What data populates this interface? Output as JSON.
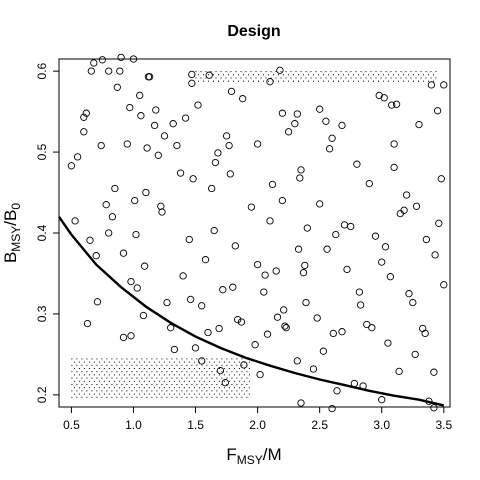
{
  "chart_data": {
    "type": "scatter",
    "title": "Design",
    "xlabel": {
      "main": "F",
      "sub": "MSY",
      "rest": "/M"
    },
    "ylabel": {
      "main": "B",
      "sub": "MSY",
      "mid": "/B",
      "sub2": "0"
    },
    "xlim": [
      0.4,
      3.55
    ],
    "ylim": [
      0.185,
      0.615
    ],
    "xticks": [
      "0.5",
      "1.0",
      "1.5",
      "2.0",
      "2.5",
      "3.0",
      "3.5"
    ],
    "xtick_values": [
      0.5,
      1.0,
      1.5,
      2.0,
      2.5,
      3.0,
      3.5
    ],
    "yticks": [
      "0.2",
      "0.3",
      "0.4",
      "0.5",
      "0.6"
    ],
    "ytick_values": [
      0.2,
      0.3,
      0.4,
      0.5,
      0.6
    ],
    "grid": false,
    "curve": {
      "x": [
        0.4,
        0.5,
        0.7,
        0.9,
        1.1,
        1.3,
        1.5,
        1.7,
        1.9,
        2.1,
        2.3,
        2.5,
        2.7,
        2.9,
        3.1,
        3.3,
        3.5
      ],
      "y": [
        0.42,
        0.398,
        0.361,
        0.333,
        0.309,
        0.289,
        0.272,
        0.258,
        0.246,
        0.236,
        0.227,
        0.219,
        0.212,
        0.205,
        0.199,
        0.194,
        0.187
      ]
    },
    "stipple_regions": [
      {
        "x": [
          1.5,
          3.45
        ],
        "y": [
          0.585,
          0.6
        ]
      },
      {
        "x": [
          0.5,
          1.95
        ],
        "y": [
          0.195,
          0.245
        ]
      }
    ],
    "points": [
      [
        0.5,
        0.483
      ],
      [
        0.55,
        0.494
      ],
      [
        0.53,
        0.415
      ],
      [
        0.6,
        0.525
      ],
      [
        0.6,
        0.543
      ],
      [
        0.62,
        0.548
      ],
      [
        0.63,
        0.288
      ],
      [
        0.65,
        0.391
      ],
      [
        0.66,
        0.6
      ],
      [
        0.68,
        0.61
      ],
      [
        0.7,
        0.372
      ],
      [
        0.71,
        0.315
      ],
      [
        0.75,
        0.614
      ],
      [
        0.74,
        0.508
      ],
      [
        0.78,
        0.435
      ],
      [
        0.8,
        0.6
      ],
      [
        0.8,
        0.4
      ],
      [
        0.83,
        0.42
      ],
      [
        0.85,
        0.455
      ],
      [
        0.87,
        0.58
      ],
      [
        0.89,
        0.6
      ],
      [
        0.9,
        0.617
      ],
      [
        0.92,
        0.375
      ],
      [
        0.92,
        0.271
      ],
      [
        0.95,
        0.51
      ],
      [
        0.97,
        0.555
      ],
      [
        0.98,
        0.34
      ],
      [
        0.98,
        0.273
      ],
      [
        1.0,
        0.615
      ],
      [
        1.01,
        0.44
      ],
      [
        1.02,
        0.398
      ],
      [
        1.03,
        0.332
      ],
      [
        1.05,
        0.57
      ],
      [
        1.06,
        0.545
      ],
      [
        1.08,
        0.298
      ],
      [
        1.09,
        0.359
      ],
      [
        1.1,
        0.45
      ],
      [
        1.11,
        0.505
      ],
      [
        1.12,
        0.593
      ],
      [
        1.13,
        0.593
      ],
      [
        1.17,
        0.533
      ],
      [
        1.18,
        0.552
      ],
      [
        1.2,
        0.496
      ],
      [
        1.22,
        0.433
      ],
      [
        1.23,
        0.426
      ],
      [
        1.25,
        0.52
      ],
      [
        1.27,
        0.314
      ],
      [
        1.3,
        0.283
      ],
      [
        1.32,
        0.535
      ],
      [
        1.33,
        0.256
      ],
      [
        1.35,
        0.508
      ],
      [
        1.38,
        0.474
      ],
      [
        1.4,
        0.347
      ],
      [
        1.42,
        0.542
      ],
      [
        1.45,
        0.392
      ],
      [
        1.46,
        0.318
      ],
      [
        1.47,
        0.596
      ],
      [
        1.47,
        0.585
      ],
      [
        1.48,
        0.467
      ],
      [
        1.5,
        0.258
      ],
      [
        1.52,
        0.558
      ],
      [
        1.55,
        0.242
      ],
      [
        1.55,
        0.31
      ],
      [
        1.58,
        0.367
      ],
      [
        1.6,
        0.277
      ],
      [
        1.61,
        0.595
      ],
      [
        1.63,
        0.455
      ],
      [
        1.65,
        0.403
      ],
      [
        1.66,
        0.487
      ],
      [
        1.68,
        0.499
      ],
      [
        1.69,
        0.282
      ],
      [
        1.7,
        0.23
      ],
      [
        1.72,
        0.33
      ],
      [
        1.74,
        0.215
      ],
      [
        1.75,
        0.52
      ],
      [
        1.77,
        0.508
      ],
      [
        1.78,
        0.473
      ],
      [
        1.79,
        0.575
      ],
      [
        1.8,
        0.333
      ],
      [
        1.82,
        0.384
      ],
      [
        1.84,
        0.293
      ],
      [
        1.87,
        0.29
      ],
      [
        1.88,
        0.566
      ],
      [
        1.89,
        0.237
      ],
      [
        1.95,
        0.432
      ],
      [
        1.98,
        0.262
      ],
      [
        2.0,
        0.51
      ],
      [
        2.0,
        0.361
      ],
      [
        2.02,
        0.225
      ],
      [
        2.05,
        0.327
      ],
      [
        2.06,
        0.348
      ],
      [
        2.08,
        0.275
      ],
      [
        2.1,
        0.587
      ],
      [
        2.1,
        0.415
      ],
      [
        2.12,
        0.46
      ],
      [
        2.15,
        0.353
      ],
      [
        2.16,
        0.296
      ],
      [
        2.18,
        0.601
      ],
      [
        2.2,
        0.548
      ],
      [
        2.2,
        0.44
      ],
      [
        2.21,
        0.305
      ],
      [
        2.22,
        0.285
      ],
      [
        2.23,
        0.283
      ],
      [
        2.25,
        0.525
      ],
      [
        2.3,
        0.535
      ],
      [
        2.32,
        0.242
      ],
      [
        2.32,
        0.547
      ],
      [
        2.33,
        0.38
      ],
      [
        2.34,
        0.468
      ],
      [
        2.35,
        0.478
      ],
      [
        2.35,
        0.19
      ],
      [
        2.37,
        0.351
      ],
      [
        2.38,
        0.36
      ],
      [
        2.39,
        0.314
      ],
      [
        2.4,
        0.406
      ],
      [
        2.45,
        0.232
      ],
      [
        2.48,
        0.295
      ],
      [
        2.5,
        0.553
      ],
      [
        2.5,
        0.436
      ],
      [
        2.53,
        0.254
      ],
      [
        2.55,
        0.538
      ],
      [
        2.56,
        0.38
      ],
      [
        2.58,
        0.504
      ],
      [
        2.6,
        0.517
      ],
      [
        2.61,
        0.276
      ],
      [
        2.63,
        0.398
      ],
      [
        2.64,
        0.205
      ],
      [
        2.68,
        0.278
      ],
      [
        2.68,
        0.533
      ],
      [
        2.7,
        0.41
      ],
      [
        2.72,
        0.355
      ],
      [
        2.75,
        0.408
      ],
      [
        2.78,
        0.214
      ],
      [
        2.8,
        0.485
      ],
      [
        2.82,
        0.327
      ],
      [
        2.83,
        0.311
      ],
      [
        2.85,
        0.211
      ],
      [
        2.88,
        0.287
      ],
      [
        2.9,
        0.461
      ],
      [
        2.92,
        0.283
      ],
      [
        2.95,
        0.396
      ],
      [
        2.98,
        0.57
      ],
      [
        3.0,
        0.364
      ],
      [
        3.02,
        0.567
      ],
      [
        3.03,
        0.383
      ],
      [
        3.05,
        0.264
      ],
      [
        3.07,
        0.346
      ],
      [
        3.08,
        0.558
      ],
      [
        3.1,
        0.51
      ],
      [
        3.1,
        0.481
      ],
      [
        3.12,
        0.559
      ],
      [
        3.14,
        0.229
      ],
      [
        3.15,
        0.424
      ],
      [
        3.18,
        0.428
      ],
      [
        3.2,
        0.447
      ],
      [
        3.22,
        0.325
      ],
      [
        3.25,
        0.314
      ],
      [
        3.27,
        0.25
      ],
      [
        3.28,
        0.433
      ],
      [
        3.3,
        0.534
      ],
      [
        3.33,
        0.282
      ],
      [
        3.35,
        0.276
      ],
      [
        3.36,
        0.392
      ],
      [
        3.38,
        0.192
      ],
      [
        3.4,
        0.583
      ],
      [
        3.42,
        0.228
      ],
      [
        3.43,
        0.373
      ],
      [
        3.45,
        0.551
      ],
      [
        3.46,
        0.412
      ],
      [
        3.48,
        0.467
      ],
      [
        3.5,
        0.583
      ],
      [
        3.5,
        0.336
      ],
      [
        3.42,
        0.184
      ],
      [
        2.6,
        0.183
      ],
      [
        3.0,
        0.194
      ]
    ]
  }
}
